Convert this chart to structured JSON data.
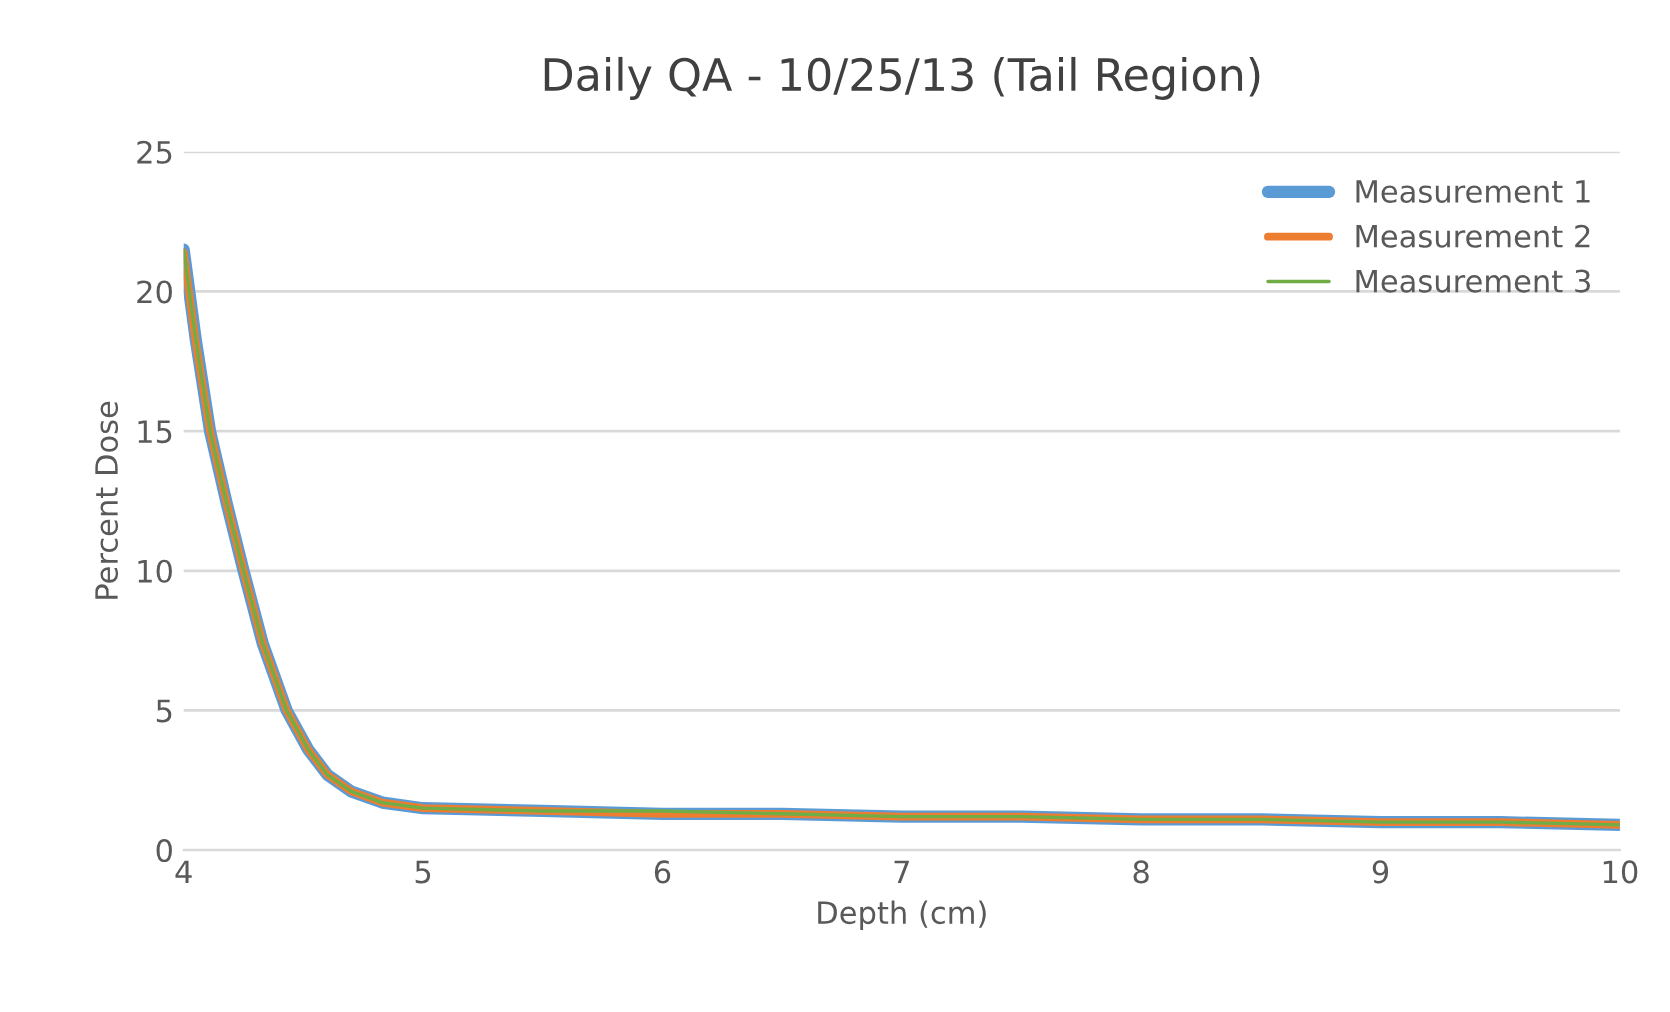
{
  "chart_data": {
    "type": "line",
    "title": "Daily QA - 10/25/13 (Tail Region)",
    "xlabel": "Depth (cm)",
    "ylabel": "Percent Dose",
    "x": [
      4,
      4.05,
      4.11,
      4.18,
      4.25,
      4.33,
      4.43,
      4.52,
      4.6,
      4.7,
      4.83,
      5,
      5.5,
      6,
      6.5,
      7,
      7.5,
      8,
      8.5,
      9,
      9.5,
      10
    ],
    "series": [
      {
        "name": "Measurement 1",
        "color": "#5b9bd5",
        "values": [
          21.5,
          18.3,
          15,
          12.4,
          10,
          7.4,
          5,
          3.6,
          2.7,
          2.1,
          1.7,
          1.5,
          1.4,
          1.3,
          1.3,
          1.2,
          1.2,
          1.1,
          1.1,
          1,
          1,
          0.9
        ]
      },
      {
        "name": "Measurement 2",
        "color": "#ed7d31",
        "values": [
          21.4,
          18.2,
          15,
          12.4,
          10,
          7.4,
          5,
          3.6,
          2.7,
          2.1,
          1.7,
          1.5,
          1.4,
          1.3,
          1.3,
          1.2,
          1.2,
          1.1,
          1.1,
          1,
          1,
          0.9
        ]
      },
      {
        "name": "Measurement 3",
        "color": "#70ad47",
        "values": [
          21.5,
          18.3,
          15,
          12.4,
          10,
          7.4,
          5,
          3.6,
          2.7,
          2.1,
          1.7,
          1.5,
          1.4,
          1.4,
          1.3,
          1.2,
          1.2,
          1.1,
          1.1,
          1,
          1,
          0.9
        ]
      }
    ],
    "xlim": [
      4,
      10
    ],
    "xticks": [
      4,
      5,
      6,
      7,
      8,
      9,
      10
    ],
    "ylim": [
      0,
      25
    ],
    "yticks": [
      0,
      5,
      10,
      15,
      20,
      25
    ],
    "grid": "y",
    "legend": "top right",
    "marker": "none",
    "line_style": "solid"
  }
}
